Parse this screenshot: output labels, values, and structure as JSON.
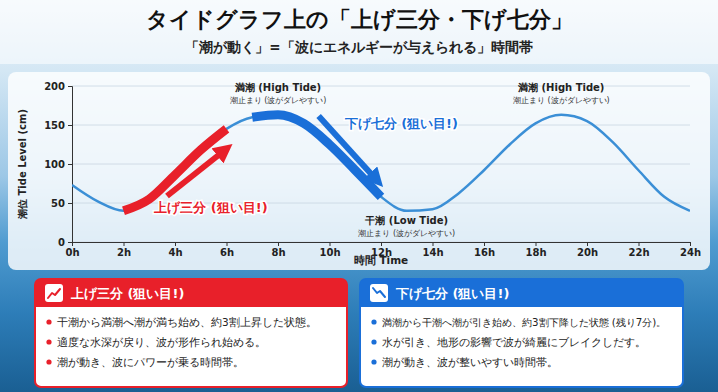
{
  "chart_data": {
    "type": "line",
    "title": "タイドグラフ上の「上げ三分・下げ七分」",
    "subtitle": "「潮が動く」=「波にエネルギーが与えられる」時間帯",
    "x_label": "時間 Time",
    "y_label": "潮位 Tide Level (cm)",
    "x": [
      0,
      1,
      2,
      3,
      4,
      5,
      6,
      7,
      8,
      9,
      10,
      11,
      12,
      13,
      14,
      15,
      16,
      17,
      18,
      19,
      20,
      21,
      22,
      23,
      24
    ],
    "values": [
      73,
      52,
      40,
      55,
      86,
      118,
      145,
      160,
      163,
      152,
      125,
      92,
      58,
      40,
      42,
      62,
      92,
      125,
      152,
      163,
      155,
      128,
      92,
      58,
      40
    ],
    "color": "#3b8fd6",
    "line_style": "solid",
    "xlim": [
      0,
      24
    ],
    "xticks": [
      {
        "value": 0,
        "label": "0h"
      },
      {
        "value": 2,
        "label": "2h"
      },
      {
        "value": 4,
        "label": "4h"
      },
      {
        "value": 6,
        "label": "6h"
      },
      {
        "value": 8,
        "label": "8h"
      },
      {
        "value": 10,
        "label": "10h"
      },
      {
        "value": 12,
        "label": "12h"
      },
      {
        "value": 14,
        "label": "14h"
      },
      {
        "value": 16,
        "label": "16h"
      },
      {
        "value": 18,
        "label": "18h"
      },
      {
        "value": 20,
        "label": "20h"
      },
      {
        "value": 22,
        "label": "22h"
      },
      {
        "value": 24,
        "label": "24h"
      }
    ],
    "ylim": [
      0,
      200
    ],
    "yticks": [
      0,
      50,
      100,
      150,
      200
    ],
    "grid": true,
    "highlights": [
      {
        "label": "上げ三分 (狙い目!)",
        "range": [
          2,
          6
        ],
        "color": "#e8202a"
      },
      {
        "label": "下げ七分 (狙い目!)",
        "range": [
          7,
          12
        ],
        "color": "#1a6fd8"
      }
    ],
    "events": [
      {
        "label": "満潮 (High Tide)",
        "note": "潮止まり (波がダレやすい)",
        "x": 8,
        "y": 163
      },
      {
        "label": "干潮 (Low Tide)",
        "note": "潮止まり (波がダレやすい)",
        "x": 13,
        "y": 40
      },
      {
        "label": "満潮 (High Tide)",
        "note": "潮止まり (波がダレやすい)",
        "x": 19,
        "y": 163
      }
    ]
  },
  "panels": [
    {
      "title": "上げ三分 (狙い目!)",
      "color": "#e8202a",
      "bullets": [
        "干潮から満潮へ潮が満ち始め、約3割上昇した状態。",
        "適度な水深が戻り、波が形作られ始める。",
        "潮が動き、波にパワーが乗る時間帯。"
      ]
    },
    {
      "title": "下げ七分 (狙い目!)",
      "color": "#1a6fd8",
      "bullets": [
        "満潮から干潮へ潮が引き始め、約3割下降した状態 (残り7分)。",
        "水が引き、地形の影響で波が綺麗にブレイクしだす。",
        "潮が動き、波が整いやすい時間帯。"
      ]
    }
  ]
}
